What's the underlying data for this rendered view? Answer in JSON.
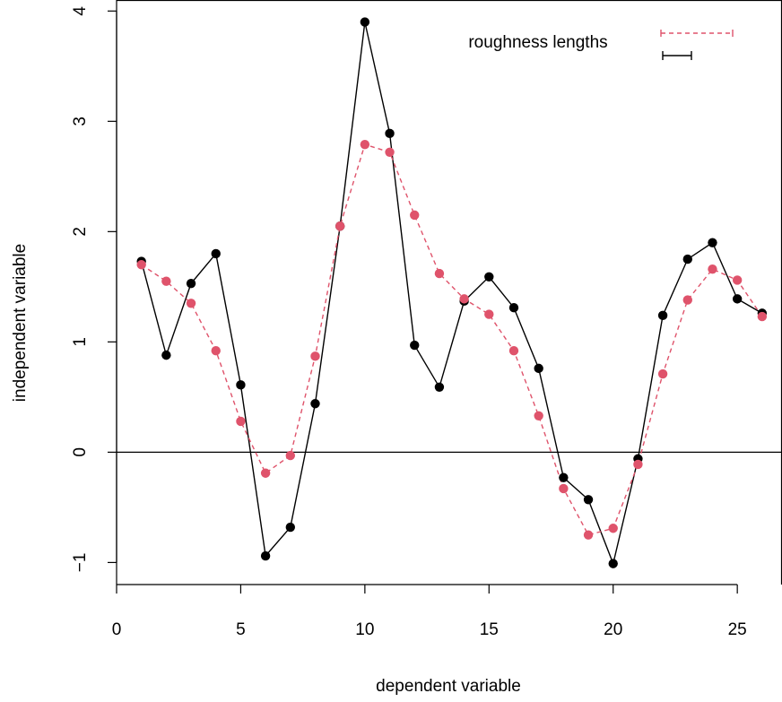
{
  "chart_data": {
    "type": "line",
    "xlabel": "dependent variable",
    "ylabel": "independent variable",
    "x_ticks": [
      0,
      5,
      10,
      15,
      20,
      25
    ],
    "y_ticks": [
      -1,
      0,
      1,
      2,
      3,
      4
    ],
    "xlim": [
      0,
      26.8
    ],
    "ylim": [
      -1.2,
      4.1
    ],
    "reference_line_y": 0,
    "legend": {
      "title": "roughness lengths",
      "position": "top-right",
      "entries": [
        "",
        ""
      ]
    },
    "x": [
      1,
      2,
      3,
      4,
      5,
      6,
      7,
      8,
      9,
      10,
      11,
      12,
      13,
      14,
      15,
      16,
      17,
      18,
      19,
      20,
      21,
      22,
      23,
      24,
      25,
      26
    ],
    "series": [
      {
        "color": "#000000",
        "line_style": "solid",
        "values": [
          1.73,
          0.88,
          1.53,
          1.8,
          0.61,
          -0.94,
          -0.68,
          0.44,
          2.05,
          3.9,
          2.89,
          0.97,
          0.59,
          1.37,
          1.59,
          1.31,
          0.76,
          -0.23,
          -0.43,
          -1.01,
          -0.06,
          1.24,
          1.75,
          1.9,
          1.39,
          1.26
        ]
      },
      {
        "color": "#DF536B",
        "line_style": "dashed",
        "values": [
          1.7,
          1.55,
          1.35,
          0.92,
          0.28,
          -0.19,
          -0.03,
          0.87,
          2.05,
          2.79,
          2.72,
          2.15,
          1.62,
          1.39,
          1.25,
          0.92,
          0.33,
          -0.33,
          -0.75,
          -0.69,
          -0.11,
          0.71,
          1.38,
          1.66,
          1.56,
          1.23
        ]
      }
    ]
  }
}
